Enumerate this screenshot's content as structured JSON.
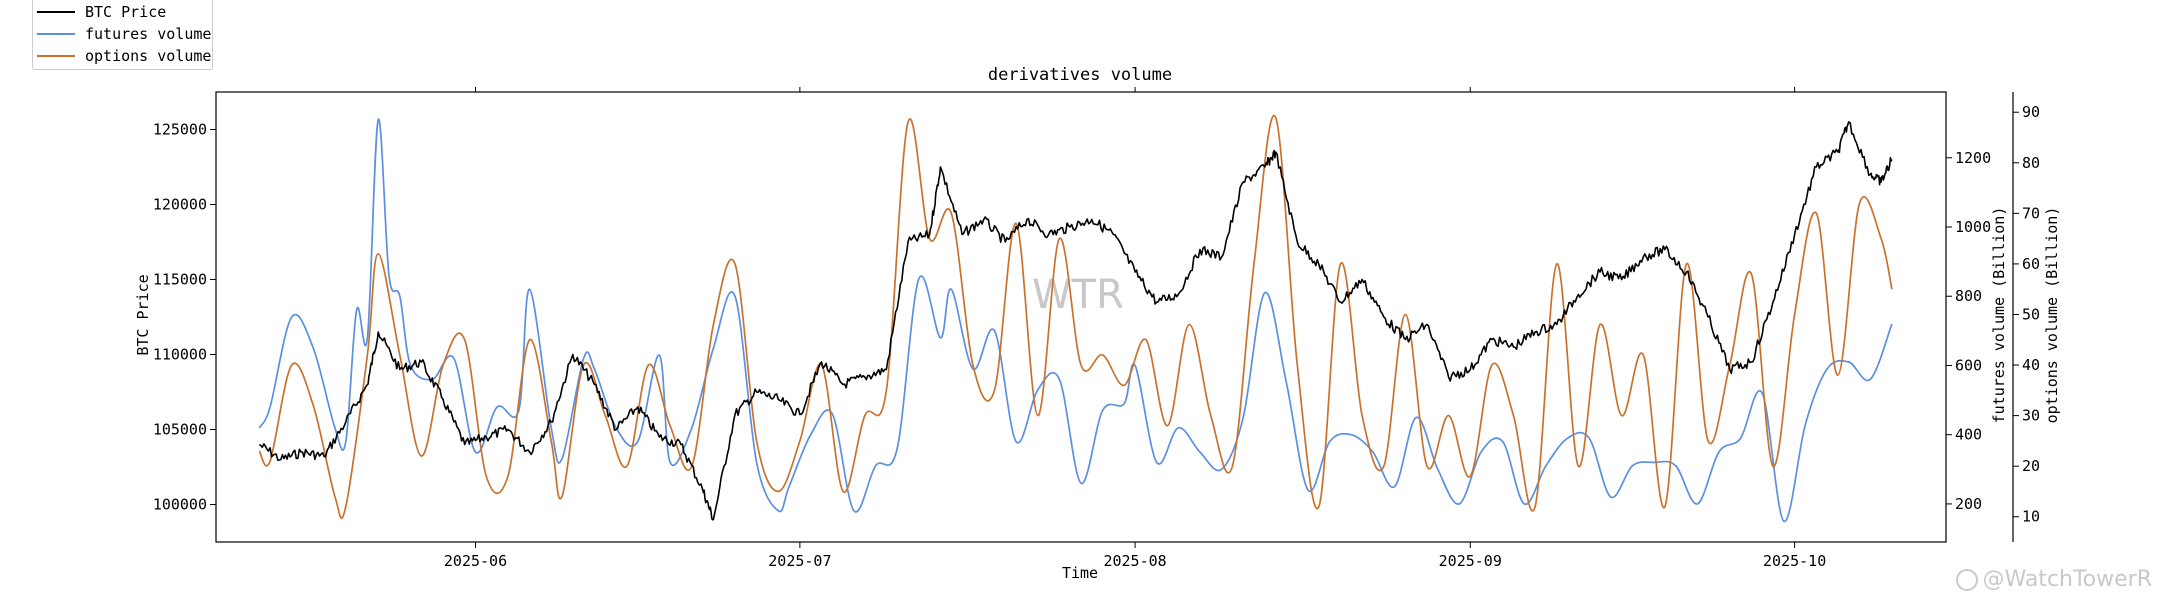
{
  "chart_data": {
    "type": "line",
    "title": "derivatives volume",
    "xlabel": "Time",
    "x_range": [
      "2025-05-08",
      "2025-10-15"
    ],
    "x_ticks": [
      {
        "date": "2025-06-01",
        "label": "2025-06"
      },
      {
        "date": "2025-07-01",
        "label": "2025-07"
      },
      {
        "date": "2025-08-01",
        "label": "2025-08"
      },
      {
        "date": "2025-09-01",
        "label": "2025-09"
      },
      {
        "date": "2025-10-01",
        "label": "2025-10"
      }
    ],
    "axes": {
      "price": {
        "label": "BTC Price",
        "ylim": [
          97500,
          127500
        ],
        "ticks": [
          100000,
          105000,
          110000,
          115000,
          120000,
          125000
        ]
      },
      "futures": {
        "label": "futures volume (Billion)",
        "ylim": [
          90,
          1390
        ],
        "ticks": [
          200,
          400,
          600,
          800,
          1000,
          1200
        ]
      },
      "options": {
        "label": "options volume (Billion)",
        "ylim": [
          5,
          94
        ],
        "ticks": [
          10,
          20,
          30,
          40,
          50,
          60,
          70,
          80,
          90
        ]
      }
    },
    "series": [
      {
        "name": "BTC Price",
        "axis": "price",
        "color": "#000000",
        "points": [
          [
            "2025-05-12",
            104000
          ],
          [
            "2025-05-14",
            103000
          ],
          [
            "2025-05-16",
            103500
          ],
          [
            "2025-05-18",
            103200
          ],
          [
            "2025-05-20",
            105500
          ],
          [
            "2025-05-22",
            108000
          ],
          [
            "2025-05-23",
            111500
          ],
          [
            "2025-05-25",
            109000
          ],
          [
            "2025-05-27",
            109500
          ],
          [
            "2025-05-29",
            107000
          ],
          [
            "2025-05-31",
            104000
          ],
          [
            "2025-06-02",
            104500
          ],
          [
            "2025-06-04",
            105000
          ],
          [
            "2025-06-06",
            103500
          ],
          [
            "2025-06-08",
            105500
          ],
          [
            "2025-06-10",
            110000
          ],
          [
            "2025-06-12",
            108000
          ],
          [
            "2025-06-14",
            105000
          ],
          [
            "2025-06-16",
            106500
          ],
          [
            "2025-06-18",
            104500
          ],
          [
            "2025-06-20",
            104000
          ],
          [
            "2025-06-22",
            101000
          ],
          [
            "2025-06-23",
            99000
          ],
          [
            "2025-06-25",
            106000
          ],
          [
            "2025-06-27",
            107500
          ],
          [
            "2025-06-29",
            107000
          ],
          [
            "2025-07-01",
            106000
          ],
          [
            "2025-07-03",
            109500
          ],
          [
            "2025-07-05",
            108000
          ],
          [
            "2025-07-07",
            108500
          ],
          [
            "2025-07-09",
            109000
          ],
          [
            "2025-07-11",
            117500
          ],
          [
            "2025-07-13",
            118000
          ],
          [
            "2025-07-14",
            122500
          ],
          [
            "2025-07-16",
            118000
          ],
          [
            "2025-07-18",
            119000
          ],
          [
            "2025-07-20",
            117500
          ],
          [
            "2025-07-22",
            119000
          ],
          [
            "2025-07-24",
            118000
          ],
          [
            "2025-07-26",
            118500
          ],
          [
            "2025-07-28",
            119000
          ],
          [
            "2025-07-30",
            118000
          ],
          [
            "2025-08-01",
            115500
          ],
          [
            "2025-08-03",
            113500
          ],
          [
            "2025-08-05",
            114000
          ],
          [
            "2025-08-07",
            117000
          ],
          [
            "2025-08-09",
            116500
          ],
          [
            "2025-08-11",
            121500
          ],
          [
            "2025-08-13",
            122500
          ],
          [
            "2025-08-14",
            123500
          ],
          [
            "2025-08-16",
            117500
          ],
          [
            "2025-08-18",
            116000
          ],
          [
            "2025-08-20",
            113500
          ],
          [
            "2025-08-22",
            115000
          ],
          [
            "2025-08-24",
            112500
          ],
          [
            "2025-08-26",
            111000
          ],
          [
            "2025-08-28",
            112000
          ],
          [
            "2025-08-30",
            108500
          ],
          [
            "2025-09-01",
            109000
          ],
          [
            "2025-09-03",
            111000
          ],
          [
            "2025-09-05",
            110500
          ],
          [
            "2025-09-07",
            111500
          ],
          [
            "2025-09-09",
            112000
          ],
          [
            "2025-09-11",
            114000
          ],
          [
            "2025-09-13",
            115500
          ],
          [
            "2025-09-15",
            115000
          ],
          [
            "2025-09-17",
            116500
          ],
          [
            "2025-09-19",
            117000
          ],
          [
            "2025-09-21",
            115500
          ],
          [
            "2025-09-23",
            112500
          ],
          [
            "2025-09-25",
            109000
          ],
          [
            "2025-09-27",
            109500
          ],
          [
            "2025-09-29",
            113500
          ],
          [
            "2025-10-01",
            118000
          ],
          [
            "2025-10-03",
            122500
          ],
          [
            "2025-10-05",
            123500
          ],
          [
            "2025-10-06",
            125500
          ],
          [
            "2025-10-08",
            122000
          ],
          [
            "2025-10-09",
            121500
          ],
          [
            "2025-10-10",
            123000
          ]
        ]
      },
      {
        "name": "futures volume",
        "axis": "futures",
        "color": "#5b8fe0",
        "points": [
          [
            "2025-05-12",
            420
          ],
          [
            "2025-05-13",
            480
          ],
          [
            "2025-05-15",
            740
          ],
          [
            "2025-05-17",
            650
          ],
          [
            "2025-05-19",
            420
          ],
          [
            "2025-05-20",
            380
          ],
          [
            "2025-05-21",
            760
          ],
          [
            "2025-05-22",
            680
          ],
          [
            "2025-05-23",
            1310
          ],
          [
            "2025-05-24",
            860
          ],
          [
            "2025-05-25",
            800
          ],
          [
            "2025-05-26",
            600
          ],
          [
            "2025-05-28",
            560
          ],
          [
            "2025-05-30",
            620
          ],
          [
            "2025-06-01",
            350
          ],
          [
            "2025-06-03",
            480
          ],
          [
            "2025-06-05",
            470
          ],
          [
            "2025-06-06",
            820
          ],
          [
            "2025-06-08",
            420
          ],
          [
            "2025-06-09",
            330
          ],
          [
            "2025-06-11",
            620
          ],
          [
            "2025-06-12",
            590
          ],
          [
            "2025-06-14",
            420
          ],
          [
            "2025-06-16",
            380
          ],
          [
            "2025-06-18",
            630
          ],
          [
            "2025-06-19",
            320
          ],
          [
            "2025-06-21",
            420
          ],
          [
            "2025-06-23",
            650
          ],
          [
            "2025-06-25",
            800
          ],
          [
            "2025-06-27",
            320
          ],
          [
            "2025-06-29",
            180
          ],
          [
            "2025-06-30",
            250
          ],
          [
            "2025-07-02",
            400
          ],
          [
            "2025-07-04",
            460
          ],
          [
            "2025-07-06",
            180
          ],
          [
            "2025-07-08",
            310
          ],
          [
            "2025-07-10",
            360
          ],
          [
            "2025-07-12",
            850
          ],
          [
            "2025-07-14",
            680
          ],
          [
            "2025-07-15",
            820
          ],
          [
            "2025-07-17",
            590
          ],
          [
            "2025-07-19",
            700
          ],
          [
            "2025-07-21",
            380
          ],
          [
            "2025-07-23",
            530
          ],
          [
            "2025-07-25",
            560
          ],
          [
            "2025-07-27",
            260
          ],
          [
            "2025-07-29",
            470
          ],
          [
            "2025-07-31",
            490
          ],
          [
            "2025-08-01",
            600
          ],
          [
            "2025-08-03",
            320
          ],
          [
            "2025-08-05",
            420
          ],
          [
            "2025-08-07",
            350
          ],
          [
            "2025-08-09",
            300
          ],
          [
            "2025-08-11",
            450
          ],
          [
            "2025-08-13",
            810
          ],
          [
            "2025-08-15",
            550
          ],
          [
            "2025-08-17",
            240
          ],
          [
            "2025-08-19",
            380
          ],
          [
            "2025-08-21",
            400
          ],
          [
            "2025-08-23",
            350
          ],
          [
            "2025-08-25",
            250
          ],
          [
            "2025-08-27",
            450
          ],
          [
            "2025-08-29",
            300
          ],
          [
            "2025-08-31",
            200
          ],
          [
            "2025-09-02",
            350
          ],
          [
            "2025-09-04",
            380
          ],
          [
            "2025-09-06",
            200
          ],
          [
            "2025-09-08",
            310
          ],
          [
            "2025-09-10",
            390
          ],
          [
            "2025-09-12",
            390
          ],
          [
            "2025-09-14",
            220
          ],
          [
            "2025-09-16",
            310
          ],
          [
            "2025-09-18",
            320
          ],
          [
            "2025-09-20",
            310
          ],
          [
            "2025-09-22",
            200
          ],
          [
            "2025-09-24",
            350
          ],
          [
            "2025-09-26",
            390
          ],
          [
            "2025-09-28",
            520
          ],
          [
            "2025-09-30",
            150
          ],
          [
            "2025-10-02",
            430
          ],
          [
            "2025-10-04",
            590
          ],
          [
            "2025-10-06",
            610
          ],
          [
            "2025-10-08",
            560
          ],
          [
            "2025-10-10",
            720
          ]
        ]
      },
      {
        "name": "options volume",
        "axis": "options",
        "color": "#c8722d",
        "points": [
          [
            "2025-05-12",
            23
          ],
          [
            "2025-05-13",
            21
          ],
          [
            "2025-05-15",
            40
          ],
          [
            "2025-05-17",
            32
          ],
          [
            "2025-05-19",
            14
          ],
          [
            "2025-05-20",
            12
          ],
          [
            "2025-05-22",
            42
          ],
          [
            "2025-05-23",
            62
          ],
          [
            "2025-05-25",
            42
          ],
          [
            "2025-05-27",
            22
          ],
          [
            "2025-05-29",
            40
          ],
          [
            "2025-05-31",
            45
          ],
          [
            "2025-06-02",
            18
          ],
          [
            "2025-06-04",
            18
          ],
          [
            "2025-06-06",
            45
          ],
          [
            "2025-06-08",
            25
          ],
          [
            "2025-06-09",
            14
          ],
          [
            "2025-06-11",
            40
          ],
          [
            "2025-06-13",
            30
          ],
          [
            "2025-06-15",
            20
          ],
          [
            "2025-06-17",
            40
          ],
          [
            "2025-06-19",
            28
          ],
          [
            "2025-06-21",
            20
          ],
          [
            "2025-06-23",
            48
          ],
          [
            "2025-06-25",
            60
          ],
          [
            "2025-06-27",
            25
          ],
          [
            "2025-06-29",
            15
          ],
          [
            "2025-07-01",
            25
          ],
          [
            "2025-07-03",
            40
          ],
          [
            "2025-07-05",
            15
          ],
          [
            "2025-07-07",
            30
          ],
          [
            "2025-07-09",
            35
          ],
          [
            "2025-07-11",
            88
          ],
          [
            "2025-07-13",
            65
          ],
          [
            "2025-07-15",
            70
          ],
          [
            "2025-07-17",
            40
          ],
          [
            "2025-07-19",
            35
          ],
          [
            "2025-07-21",
            68
          ],
          [
            "2025-07-23",
            30
          ],
          [
            "2025-07-25",
            65
          ],
          [
            "2025-07-27",
            40
          ],
          [
            "2025-07-29",
            42
          ],
          [
            "2025-07-31",
            36
          ],
          [
            "2025-08-02",
            45
          ],
          [
            "2025-08-04",
            28
          ],
          [
            "2025-08-06",
            48
          ],
          [
            "2025-08-08",
            30
          ],
          [
            "2025-08-10",
            20
          ],
          [
            "2025-08-12",
            60
          ],
          [
            "2025-08-14",
            89
          ],
          [
            "2025-08-16",
            40
          ],
          [
            "2025-08-18",
            12
          ],
          [
            "2025-08-20",
            60
          ],
          [
            "2025-08-22",
            30
          ],
          [
            "2025-08-24",
            20
          ],
          [
            "2025-08-26",
            50
          ],
          [
            "2025-08-28",
            20
          ],
          [
            "2025-08-30",
            30
          ],
          [
            "2025-09-01",
            18
          ],
          [
            "2025-09-03",
            40
          ],
          [
            "2025-09-05",
            30
          ],
          [
            "2025-09-07",
            12
          ],
          [
            "2025-09-09",
            60
          ],
          [
            "2025-09-11",
            20
          ],
          [
            "2025-09-13",
            48
          ],
          [
            "2025-09-15",
            30
          ],
          [
            "2025-09-17",
            42
          ],
          [
            "2025-09-19",
            12
          ],
          [
            "2025-09-21",
            60
          ],
          [
            "2025-09-23",
            25
          ],
          [
            "2025-09-25",
            40
          ],
          [
            "2025-09-27",
            58
          ],
          [
            "2025-09-29",
            20
          ],
          [
            "2025-10-01",
            50
          ],
          [
            "2025-10-03",
            70
          ],
          [
            "2025-10-05",
            38
          ],
          [
            "2025-10-07",
            72
          ],
          [
            "2025-10-09",
            65
          ],
          [
            "2025-10-10",
            55
          ]
        ]
      }
    ],
    "legend_position": "top-left outside"
  },
  "legend": {
    "price": "BTC Price",
    "futures": "futures volume",
    "options": "options volume"
  },
  "watermarks": {
    "center": "WTR",
    "corner": "@WatchTowerR"
  }
}
